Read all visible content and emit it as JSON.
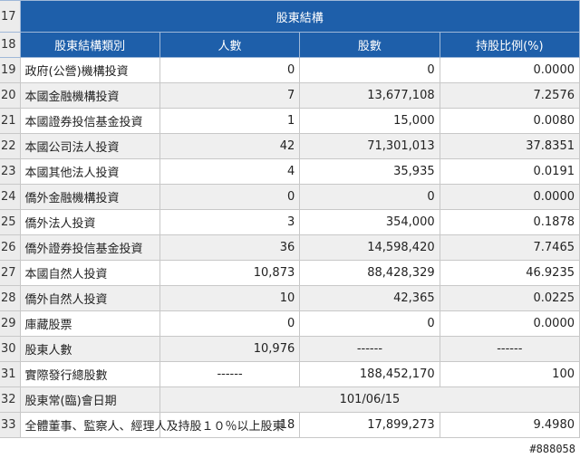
{
  "title_row": {
    "row_number": "17",
    "title": "股東結構"
  },
  "header_row": {
    "row_number": "18",
    "columns": [
      "股東結構類別",
      "人數",
      "股數",
      "持股比例(%)"
    ]
  },
  "rows": [
    {
      "rn": "19",
      "category": "政府(公營)機構投資",
      "people": "0",
      "shares": "0",
      "ratio": "0.0000"
    },
    {
      "rn": "20",
      "category": "本國金融機構投資",
      "people": "7",
      "shares": "13,677,108",
      "ratio": "7.2576"
    },
    {
      "rn": "21",
      "category": "本國證券投信基金投資",
      "people": "1",
      "shares": "15,000",
      "ratio": "0.0080"
    },
    {
      "rn": "22",
      "category": "本國公司法人投資",
      "people": "42",
      "shares": "71,301,013",
      "ratio": "37.8351"
    },
    {
      "rn": "23",
      "category": "本國其他法人投資",
      "people": "4",
      "shares": "35,935",
      "ratio": "0.0191"
    },
    {
      "rn": "24",
      "category": "僑外金融機構投資",
      "people": "0",
      "shares": "0",
      "ratio": "0.0000"
    },
    {
      "rn": "25",
      "category": "僑外法人投資",
      "people": "3",
      "shares": "354,000",
      "ratio": "0.1878"
    },
    {
      "rn": "26",
      "category": "僑外證券投信基金投資",
      "people": "36",
      "shares": "14,598,420",
      "ratio": "7.7465"
    },
    {
      "rn": "27",
      "category": "本國自然人投資",
      "people": "10,873",
      "shares": "88,428,329",
      "ratio": "46.9235"
    },
    {
      "rn": "28",
      "category": "僑外自然人投資",
      "people": "10",
      "shares": "42,365",
      "ratio": "0.0225"
    },
    {
      "rn": "29",
      "category": "庫藏股票",
      "people": "0",
      "shares": "0",
      "ratio": "0.0000"
    },
    {
      "rn": "30",
      "category": "股東人數",
      "people": "10,976",
      "shares": "------",
      "ratio": "------"
    },
    {
      "rn": "31",
      "category": "實際發行總股數",
      "people": "------",
      "shares": "188,452,170",
      "ratio": "100"
    }
  ],
  "date_row": {
    "rn": "32",
    "category": "股東常(臨)會日期",
    "value": "101/06/15"
  },
  "last_row": {
    "rn": "33",
    "category": "全體董事、監察人、經理人及持股１０％以上股東",
    "people": "18",
    "shares": "17,899,273",
    "ratio": "9.4980"
  },
  "watermark": "#888058"
}
